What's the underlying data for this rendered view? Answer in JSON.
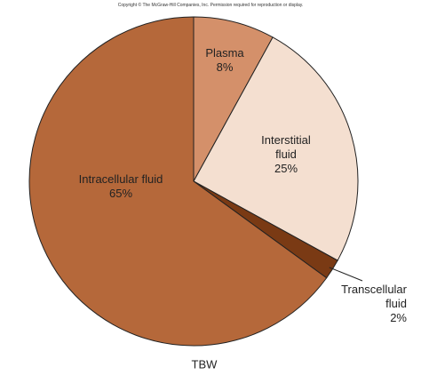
{
  "chart_data": {
    "type": "pie",
    "source": "Copyright © The McGraw-Hill Companies, Inc. Permission required for reproduction or display.",
    "caption": "TBW",
    "categories": [
      "Plasma",
      "Interstitial fluid",
      "Transcellular fluid",
      "Intracellular fluid"
    ],
    "values": [
      8,
      25,
      2,
      65
    ],
    "value_labels": [
      "8%",
      "25%",
      "2%",
      "65%"
    ],
    "colors": [
      "#d4906a",
      "#f4dfd0",
      "#7a3a14",
      "#b5683a"
    ]
  }
}
